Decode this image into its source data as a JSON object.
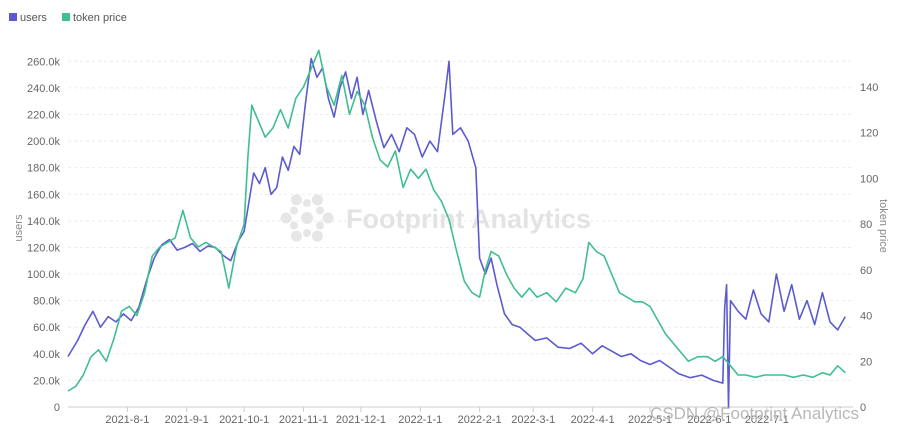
{
  "colors": {
    "users": "#5b5bd0",
    "price": "#3fbf8f",
    "grid": "#ececec",
    "axis": "#cccccc"
  },
  "watermark": "Footprint Analytics",
  "credit": "CSDN @Footprint Analytics",
  "chart_data": {
    "type": "line",
    "legend": [
      {
        "key": "users",
        "label": "users",
        "color": "#5b5bd0"
      },
      {
        "key": "price",
        "label": "token price",
        "color": "#3fbf8f"
      }
    ],
    "legend_position": "top-left",
    "grid": true,
    "x_range": [
      "2021-07-01",
      "2022-08-15"
    ],
    "x_ticks": [
      {
        "date": "2021-08-01",
        "label": "2021-8-1"
      },
      {
        "date": "2021-09-01",
        "label": "2021-9-1"
      },
      {
        "date": "2021-10-01",
        "label": "2021-10-1"
      },
      {
        "date": "2021-11-01",
        "label": "2021-11-1"
      },
      {
        "date": "2021-12-01",
        "label": "2021-12-1"
      },
      {
        "date": "2022-01-01",
        "label": "2022-1-1"
      },
      {
        "date": "2022-02-01",
        "label": "2022-2-1"
      },
      {
        "date": "2022-03-01",
        "label": "2022-3-1"
      },
      {
        "date": "2022-04-01",
        "label": "2022-4-1"
      },
      {
        "date": "2022-05-01",
        "label": "2022-5-1"
      },
      {
        "date": "2022-06-01",
        "label": "2022-6-1"
      },
      {
        "date": "2022-07-01",
        "label": "2022-7-1"
      }
    ],
    "y_left": {
      "label": "users",
      "range": [
        0,
        270000
      ],
      "ticks": [
        {
          "value": 0,
          "label": "0"
        },
        {
          "value": 20000,
          "label": "20.0k"
        },
        {
          "value": 40000,
          "label": "40.0k"
        },
        {
          "value": 60000,
          "label": "60.0k"
        },
        {
          "value": 80000,
          "label": "80.0k"
        },
        {
          "value": 100000,
          "label": "100.0k"
        },
        {
          "value": 120000,
          "label": "120.0k"
        },
        {
          "value": 140000,
          "label": "140.0k"
        },
        {
          "value": 160000,
          "label": "160.0k"
        },
        {
          "value": 180000,
          "label": "180.0k"
        },
        {
          "value": 200000,
          "label": "200.0k"
        },
        {
          "value": 220000,
          "label": "220.0k"
        },
        {
          "value": 240000,
          "label": "240.0k"
        },
        {
          "value": 260000,
          "label": "260.0k"
        }
      ]
    },
    "y_right": {
      "label": "token price",
      "range": [
        0,
        157
      ],
      "ticks": [
        {
          "value": 0,
          "label": "0"
        },
        {
          "value": 20,
          "label": "20"
        },
        {
          "value": 40,
          "label": "40"
        },
        {
          "value": 60,
          "label": "60"
        },
        {
          "value": 80,
          "label": "80"
        },
        {
          "value": 100,
          "label": "100"
        },
        {
          "value": 120,
          "label": "120"
        },
        {
          "value": 140,
          "label": "140"
        }
      ]
    },
    "series": [
      {
        "name": "users",
        "key": "users",
        "axis": "left",
        "points": [
          [
            "2021-07-01",
            38000
          ],
          [
            "2021-07-06",
            50000
          ],
          [
            "2021-07-10",
            62000
          ],
          [
            "2021-07-14",
            72000
          ],
          [
            "2021-07-18",
            60000
          ],
          [
            "2021-07-22",
            68000
          ],
          [
            "2021-07-26",
            64000
          ],
          [
            "2021-07-30",
            70000
          ],
          [
            "2021-08-03",
            65000
          ],
          [
            "2021-08-07",
            75000
          ],
          [
            "2021-08-11",
            95000
          ],
          [
            "2021-08-15",
            112000
          ],
          [
            "2021-08-19",
            122000
          ],
          [
            "2021-08-23",
            126000
          ],
          [
            "2021-08-27",
            118000
          ],
          [
            "2021-08-31",
            120000
          ],
          [
            "2021-09-04",
            123000
          ],
          [
            "2021-09-08",
            117000
          ],
          [
            "2021-09-12",
            121000
          ],
          [
            "2021-09-16",
            120000
          ],
          [
            "2021-09-20",
            114000
          ],
          [
            "2021-09-24",
            110000
          ],
          [
            "2021-09-28",
            125000
          ],
          [
            "2021-10-01",
            132000
          ],
          [
            "2021-10-03",
            150000
          ],
          [
            "2021-10-06",
            176000
          ],
          [
            "2021-10-09",
            168000
          ],
          [
            "2021-10-12",
            180000
          ],
          [
            "2021-10-15",
            160000
          ],
          [
            "2021-10-18",
            165000
          ],
          [
            "2021-10-21",
            188000
          ],
          [
            "2021-10-24",
            178000
          ],
          [
            "2021-10-27",
            196000
          ],
          [
            "2021-10-30",
            190000
          ],
          [
            "2021-11-02",
            228000
          ],
          [
            "2021-11-05",
            262000
          ],
          [
            "2021-11-08",
            248000
          ],
          [
            "2021-11-11",
            255000
          ],
          [
            "2021-11-14",
            232000
          ],
          [
            "2021-11-17",
            218000
          ],
          [
            "2021-11-20",
            240000
          ],
          [
            "2021-11-23",
            252000
          ],
          [
            "2021-11-26",
            232000
          ],
          [
            "2021-11-29",
            248000
          ],
          [
            "2021-12-02",
            220000
          ],
          [
            "2021-12-05",
            238000
          ],
          [
            "2021-12-09",
            215000
          ],
          [
            "2021-12-13",
            195000
          ],
          [
            "2021-12-17",
            205000
          ],
          [
            "2021-12-21",
            192000
          ],
          [
            "2021-12-25",
            210000
          ],
          [
            "2021-12-29",
            205000
          ],
          [
            "2022-01-02",
            188000
          ],
          [
            "2022-01-06",
            200000
          ],
          [
            "2022-01-10",
            192000
          ],
          [
            "2022-01-14",
            236000
          ],
          [
            "2022-01-16",
            260000
          ],
          [
            "2022-01-18",
            205000
          ],
          [
            "2022-01-22",
            210000
          ],
          [
            "2022-01-26",
            200000
          ],
          [
            "2022-01-30",
            180000
          ],
          [
            "2022-02-01",
            112000
          ],
          [
            "2022-02-04",
            100000
          ],
          [
            "2022-02-07",
            112000
          ],
          [
            "2022-02-10",
            92000
          ],
          [
            "2022-02-14",
            70000
          ],
          [
            "2022-02-18",
            62000
          ],
          [
            "2022-02-22",
            60000
          ],
          [
            "2022-02-26",
            55000
          ],
          [
            "2022-03-02",
            50000
          ],
          [
            "2022-03-08",
            52000
          ],
          [
            "2022-03-14",
            45000
          ],
          [
            "2022-03-20",
            44000
          ],
          [
            "2022-03-26",
            48000
          ],
          [
            "2022-04-01",
            40000
          ],
          [
            "2022-04-06",
            46000
          ],
          [
            "2022-04-11",
            42000
          ],
          [
            "2022-04-16",
            38000
          ],
          [
            "2022-04-21",
            40000
          ],
          [
            "2022-04-26",
            35000
          ],
          [
            "2022-05-01",
            32000
          ],
          [
            "2022-05-06",
            35000
          ],
          [
            "2022-05-11",
            30000
          ],
          [
            "2022-05-16",
            25000
          ],
          [
            "2022-05-22",
            22000
          ],
          [
            "2022-05-28",
            24000
          ],
          [
            "2022-06-03",
            20000
          ],
          [
            "2022-06-08",
            18000
          ],
          [
            "2022-06-09",
            75000
          ],
          [
            "2022-06-10",
            92000
          ],
          [
            "2022-06-11",
            0
          ],
          [
            "2022-06-12",
            80000
          ],
          [
            "2022-06-16",
            72000
          ],
          [
            "2022-06-20",
            66000
          ],
          [
            "2022-06-24",
            88000
          ],
          [
            "2022-06-28",
            70000
          ],
          [
            "2022-07-02",
            64000
          ],
          [
            "2022-07-06",
            100000
          ],
          [
            "2022-07-10",
            72000
          ],
          [
            "2022-07-14",
            92000
          ],
          [
            "2022-07-18",
            66000
          ],
          [
            "2022-07-22",
            80000
          ],
          [
            "2022-07-26",
            62000
          ],
          [
            "2022-07-30",
            86000
          ],
          [
            "2022-08-03",
            64000
          ],
          [
            "2022-08-07",
            58000
          ],
          [
            "2022-08-11",
            68000
          ]
        ]
      },
      {
        "name": "token price",
        "key": "price",
        "axis": "right",
        "points": [
          [
            "2021-07-01",
            7
          ],
          [
            "2021-07-05",
            9
          ],
          [
            "2021-07-09",
            14
          ],
          [
            "2021-07-13",
            22
          ],
          [
            "2021-07-17",
            25
          ],
          [
            "2021-07-21",
            20
          ],
          [
            "2021-07-25",
            30
          ],
          [
            "2021-07-29",
            42
          ],
          [
            "2021-08-02",
            44
          ],
          [
            "2021-08-06",
            40
          ],
          [
            "2021-08-10",
            50
          ],
          [
            "2021-08-14",
            66
          ],
          [
            "2021-08-18",
            70
          ],
          [
            "2021-08-22",
            72
          ],
          [
            "2021-08-26",
            74
          ],
          [
            "2021-08-30",
            86
          ],
          [
            "2021-09-03",
            74
          ],
          [
            "2021-09-07",
            70
          ],
          [
            "2021-09-11",
            72
          ],
          [
            "2021-09-15",
            70
          ],
          [
            "2021-09-19",
            68
          ],
          [
            "2021-09-23",
            52
          ],
          [
            "2021-09-27",
            70
          ],
          [
            "2021-10-01",
            80
          ],
          [
            "2021-10-03",
            110
          ],
          [
            "2021-10-05",
            132
          ],
          [
            "2021-10-08",
            126
          ],
          [
            "2021-10-12",
            118
          ],
          [
            "2021-10-16",
            122
          ],
          [
            "2021-10-20",
            130
          ],
          [
            "2021-10-24",
            122
          ],
          [
            "2021-10-28",
            135
          ],
          [
            "2021-11-01",
            140
          ],
          [
            "2021-11-05",
            148
          ],
          [
            "2021-11-09",
            156
          ],
          [
            "2021-11-13",
            140
          ],
          [
            "2021-11-17",
            132
          ],
          [
            "2021-11-21",
            145
          ],
          [
            "2021-11-25",
            128
          ],
          [
            "2021-11-29",
            138
          ],
          [
            "2021-12-03",
            132
          ],
          [
            "2021-12-07",
            118
          ],
          [
            "2021-12-11",
            108
          ],
          [
            "2021-12-15",
            105
          ],
          [
            "2021-12-19",
            112
          ],
          [
            "2021-12-23",
            96
          ],
          [
            "2021-12-27",
            104
          ],
          [
            "2021-12-31",
            100
          ],
          [
            "2022-01-04",
            104
          ],
          [
            "2022-01-08",
            95
          ],
          [
            "2022-01-12",
            90
          ],
          [
            "2022-01-16",
            82
          ],
          [
            "2022-01-20",
            68
          ],
          [
            "2022-01-24",
            55
          ],
          [
            "2022-01-28",
            50
          ],
          [
            "2022-02-01",
            48
          ],
          [
            "2022-02-04",
            60
          ],
          [
            "2022-02-07",
            68
          ],
          [
            "2022-02-11",
            66
          ],
          [
            "2022-02-15",
            58
          ],
          [
            "2022-02-19",
            52
          ],
          [
            "2022-02-23",
            48
          ],
          [
            "2022-02-27",
            52
          ],
          [
            "2022-03-03",
            48
          ],
          [
            "2022-03-08",
            50
          ],
          [
            "2022-03-13",
            46
          ],
          [
            "2022-03-18",
            52
          ],
          [
            "2022-03-23",
            50
          ],
          [
            "2022-03-27",
            56
          ],
          [
            "2022-03-30",
            72
          ],
          [
            "2022-04-03",
            68
          ],
          [
            "2022-04-07",
            66
          ],
          [
            "2022-04-11",
            58
          ],
          [
            "2022-04-15",
            50
          ],
          [
            "2022-04-19",
            48
          ],
          [
            "2022-04-23",
            46
          ],
          [
            "2022-04-27",
            46
          ],
          [
            "2022-05-01",
            44
          ],
          [
            "2022-05-05",
            38
          ],
          [
            "2022-05-09",
            32
          ],
          [
            "2022-05-13",
            28
          ],
          [
            "2022-05-17",
            24
          ],
          [
            "2022-05-21",
            20
          ],
          [
            "2022-05-26",
            22
          ],
          [
            "2022-05-31",
            22
          ],
          [
            "2022-06-04",
            20
          ],
          [
            "2022-06-08",
            22
          ],
          [
            "2022-06-12",
            18
          ],
          [
            "2022-06-16",
            14
          ],
          [
            "2022-06-20",
            14
          ],
          [
            "2022-06-25",
            13
          ],
          [
            "2022-06-30",
            14
          ],
          [
            "2022-07-05",
            14
          ],
          [
            "2022-07-10",
            14
          ],
          [
            "2022-07-15",
            13
          ],
          [
            "2022-07-20",
            14
          ],
          [
            "2022-07-25",
            13
          ],
          [
            "2022-07-30",
            15
          ],
          [
            "2022-08-03",
            14
          ],
          [
            "2022-08-07",
            18
          ],
          [
            "2022-08-11",
            15
          ]
        ]
      }
    ]
  }
}
